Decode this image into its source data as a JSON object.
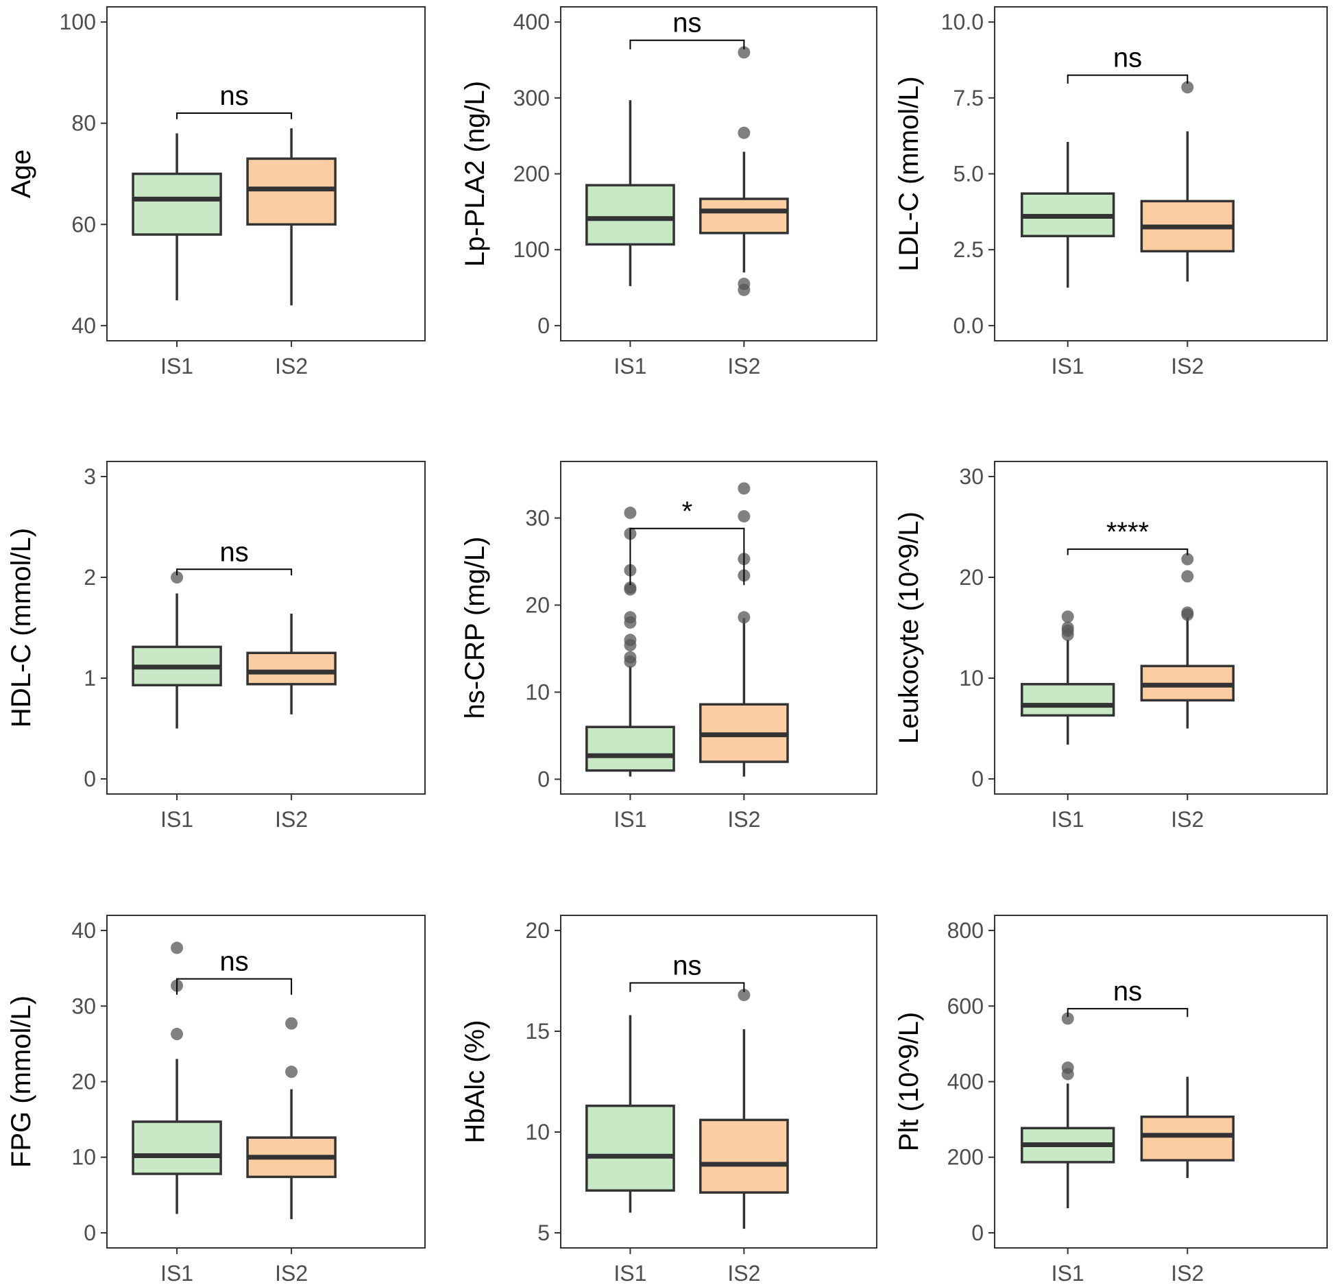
{
  "colors": {
    "IS1": "#c8e8c6",
    "IS2": "#fccca3",
    "outline": "#333333",
    "outlier": "#555555"
  },
  "chart_data": [
    {
      "type": "boxplot",
      "ylabel": "Age",
      "categories": [
        "IS1",
        "IS2"
      ],
      "ylim": [
        37,
        103
      ],
      "yticks": [
        40,
        60,
        80,
        100
      ],
      "yticklabels": [
        "40",
        "60",
        "80",
        "100"
      ],
      "groups": [
        {
          "name": "IS1",
          "whisker_low": 45,
          "q1": 58,
          "median": 65,
          "q3": 70,
          "whisker_high": 78,
          "outliers": []
        },
        {
          "name": "IS2",
          "whisker_low": 44,
          "q1": 60,
          "median": 67,
          "q3": 73,
          "whisker_high": 79,
          "outliers": []
        }
      ],
      "significance": {
        "label": "ns",
        "y": 82,
        "drop": 1.2
      }
    },
    {
      "type": "boxplot",
      "ylabel": "Lp-PLA2 (ng/L)",
      "categories": [
        "IS1",
        "IS2"
      ],
      "ylim": [
        -20,
        420
      ],
      "yticks": [
        0,
        100,
        200,
        300,
        400
      ],
      "yticklabels": [
        "0",
        "100",
        "200",
        "300",
        "400"
      ],
      "groups": [
        {
          "name": "IS1",
          "whisker_low": 52,
          "q1": 107,
          "median": 141,
          "q3": 185,
          "whisker_high": 297,
          "outliers": []
        },
        {
          "name": "IS2",
          "whisker_low": 70,
          "q1": 122,
          "median": 151,
          "q3": 167,
          "whisker_high": 229,
          "outliers": [
            360,
            254,
            55,
            47
          ]
        }
      ],
      "significance": {
        "label": "ns",
        "y": 376,
        "drop": 12
      }
    },
    {
      "type": "boxplot",
      "ylabel": "LDL-C (mmol/L)",
      "categories": [
        "IS1",
        "IS2"
      ],
      "ylim": [
        -0.5,
        10.5
      ],
      "yticks": [
        0.0,
        2.5,
        5.0,
        7.5,
        10.0
      ],
      "yticklabels": [
        "0.0",
        "2.5",
        "5.0",
        "7.5",
        "10.0"
      ],
      "groups": [
        {
          "name": "IS1",
          "whisker_low": 1.25,
          "q1": 2.95,
          "median": 3.6,
          "q3": 4.35,
          "whisker_high": 6.05,
          "outliers": []
        },
        {
          "name": "IS2",
          "whisker_low": 1.45,
          "q1": 2.45,
          "median": 3.25,
          "q3": 4.1,
          "whisker_high": 6.4,
          "outliers": [
            7.85
          ]
        }
      ],
      "significance": {
        "label": "ns",
        "y": 8.25,
        "drop": 0.28
      }
    },
    {
      "type": "boxplot",
      "ylabel": "HDL-C (mmol/L)",
      "categories": [
        "IS1",
        "IS2"
      ],
      "ylim": [
        -0.15,
        3.15
      ],
      "yticks": [
        0,
        1,
        2,
        3
      ],
      "yticklabels": [
        "0",
        "1",
        "2",
        "3"
      ],
      "groups": [
        {
          "name": "IS1",
          "whisker_low": 0.5,
          "q1": 0.93,
          "median": 1.11,
          "q3": 1.31,
          "whisker_high": 1.84,
          "outliers": [
            2.0
          ]
        },
        {
          "name": "IS2",
          "whisker_low": 0.64,
          "q1": 0.94,
          "median": 1.06,
          "q3": 1.25,
          "whisker_high": 1.64,
          "outliers": []
        }
      ],
      "significance": {
        "label": "ns",
        "y": 2.08,
        "drop": 0.06
      }
    },
    {
      "type": "boxplot",
      "ylabel": "hs-CRP (mg/L)",
      "categories": [
        "IS1",
        "IS2"
      ],
      "ylim": [
        -1.7,
        36.5
      ],
      "yticks": [
        0,
        10,
        20,
        30
      ],
      "yticklabels": [
        "0",
        "10",
        "20",
        "30"
      ],
      "groups": [
        {
          "name": "IS1",
          "whisker_low": 0.3,
          "q1": 1.0,
          "median": 2.7,
          "q3": 6.0,
          "whisker_high": 13.0,
          "outliers": [
            30.6,
            28.2,
            24.0,
            22.0,
            21.8,
            18.6,
            18.0,
            16.0,
            15.4,
            14.0,
            13.5
          ]
        },
        {
          "name": "IS2",
          "whisker_low": 0.3,
          "q1": 2.0,
          "median": 5.1,
          "q3": 8.6,
          "whisker_high": 18.5,
          "outliers": [
            33.4,
            30.2,
            25.3,
            23.4,
            18.6
          ]
        }
      ],
      "significance": {
        "label": "*",
        "y": 28.8,
        "drop": 6.5
      }
    },
    {
      "type": "boxplot",
      "ylabel": "Leukocyte (10^9/L)",
      "categories": [
        "IS1",
        "IS2"
      ],
      "ylim": [
        -1.5,
        31.5
      ],
      "yticks": [
        0,
        10,
        20,
        30
      ],
      "yticklabels": [
        "0",
        "10",
        "20",
        "30"
      ],
      "groups": [
        {
          "name": "IS1",
          "whisker_low": 3.4,
          "q1": 6.3,
          "median": 7.3,
          "q3": 9.4,
          "whisker_high": 13.8,
          "outliers": [
            16.1,
            15.0,
            14.7,
            14.3
          ]
        },
        {
          "name": "IS2",
          "whisker_low": 5.0,
          "q1": 7.8,
          "median": 9.3,
          "q3": 11.2,
          "whisker_high": 16.0,
          "outliers": [
            21.8,
            20.1,
            16.5,
            16.3
          ]
        }
      ],
      "significance": {
        "label": "****",
        "y": 22.8,
        "drop": 0.6
      }
    },
    {
      "type": "boxplot",
      "ylabel": "FPG (mmol/L)",
      "categories": [
        "IS1",
        "IS2"
      ],
      "ylim": [
        -2,
        42
      ],
      "yticks": [
        0,
        10,
        20,
        30,
        40
      ],
      "yticklabels": [
        "0",
        "10",
        "20",
        "30",
        "40"
      ],
      "groups": [
        {
          "name": "IS1",
          "whisker_low": 2.5,
          "q1": 7.8,
          "median": 10.2,
          "q3": 14.7,
          "whisker_high": 23.0,
          "outliers": [
            37.7,
            32.7,
            26.3
          ]
        },
        {
          "name": "IS2",
          "whisker_low": 1.8,
          "q1": 7.4,
          "median": 10.0,
          "q3": 12.6,
          "whisker_high": 19.0,
          "outliers": [
            27.7,
            21.3
          ]
        }
      ],
      "significance": {
        "label": "ns",
        "y": 33.6,
        "drop": 2.1
      }
    },
    {
      "type": "boxplot",
      "ylabel": "HbAlc (%)",
      "categories": [
        "IS1",
        "IS2"
      ],
      "ylim": [
        4.25,
        20.75
      ],
      "yticks": [
        5,
        10,
        15,
        20
      ],
      "yticklabels": [
        "5",
        "10",
        "15",
        "20"
      ],
      "groups": [
        {
          "name": "IS1",
          "whisker_low": 6.0,
          "q1": 7.1,
          "median": 8.8,
          "q3": 11.3,
          "whisker_high": 15.8,
          "outliers": []
        },
        {
          "name": "IS2",
          "whisker_low": 5.2,
          "q1": 7.0,
          "median": 8.4,
          "q3": 10.6,
          "whisker_high": 15.1,
          "outliers": [
            16.8
          ]
        }
      ],
      "significance": {
        "label": "ns",
        "y": 17.4,
        "drop": 0.45
      }
    },
    {
      "type": "boxplot",
      "ylabel": "Plt (10^9/L)",
      "categories": [
        "IS1",
        "IS2"
      ],
      "ylim": [
        -40,
        840
      ],
      "yticks": [
        0,
        200,
        400,
        600,
        800
      ],
      "yticklabels": [
        "0",
        "200",
        "400",
        "600",
        "800"
      ],
      "groups": [
        {
          "name": "IS1",
          "whisker_low": 65,
          "q1": 187,
          "median": 233,
          "q3": 277,
          "whisker_high": 395,
          "outliers": [
            567,
            437,
            420
          ]
        },
        {
          "name": "IS2",
          "whisker_low": 145,
          "q1": 192,
          "median": 258,
          "q3": 307,
          "whisker_high": 413,
          "outliers": []
        }
      ],
      "significance": {
        "label": "ns",
        "y": 593,
        "drop": 22
      }
    }
  ]
}
